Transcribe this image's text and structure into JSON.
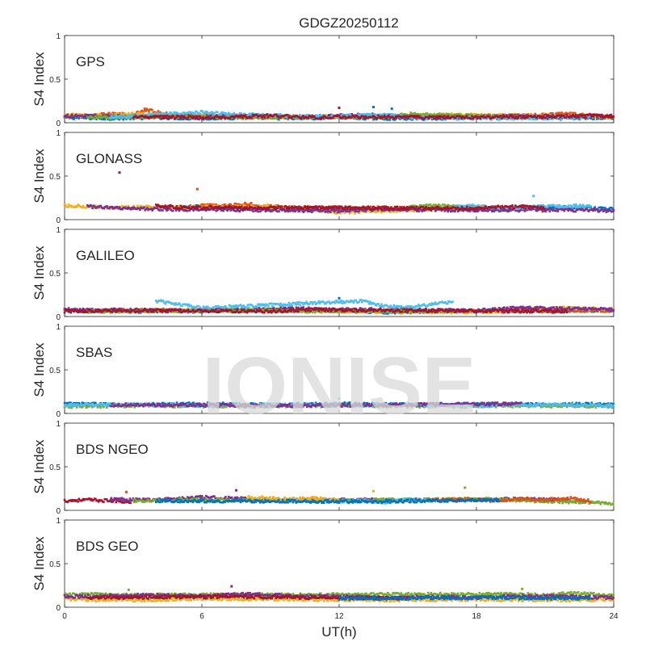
{
  "figure": {
    "title": "GDGZ20250112",
    "xlabel": "UT(h)",
    "watermark": "IONISE"
  },
  "chart_data": {
    "type": "scatter",
    "xlim": [
      0,
      24
    ],
    "xticks": [
      0,
      6,
      12,
      18,
      24
    ],
    "ylim": [
      0,
      1
    ],
    "yticks": [
      0,
      0.5,
      1
    ],
    "ylabel": "S4 Index",
    "grid": false,
    "colors": [
      "#0072BD",
      "#D95319",
      "#EDB120",
      "#7E2F8E",
      "#77AC30",
      "#4DBEEE",
      "#A2142F"
    ],
    "panels": [
      {
        "label": "GPS",
        "series": [
          {
            "color_index": 0,
            "x": [
              0,
              2,
              4,
              6,
              8,
              10,
              12,
              14,
              16,
              18,
              20,
              22,
              24
            ],
            "y": [
              0.06,
              0.05,
              0.06,
              0.05,
              0.06,
              0.05,
              0.06,
              0.05,
              0.05,
              0.06,
              0.06,
              0.05,
              0.06
            ]
          },
          {
            "color_index": 1,
            "x": [
              0,
              1,
              2,
              3,
              3.5,
              5,
              8,
              12,
              20,
              22,
              24
            ],
            "y": [
              0.07,
              0.08,
              0.1,
              0.09,
              0.15,
              0.07,
              0.06,
              0.07,
              0.08,
              0.1,
              0.07
            ]
          },
          {
            "color_index": 2,
            "x": [
              0,
              1,
              3,
              10,
              14,
              17,
              21,
              24
            ],
            "y": [
              0.09,
              0.08,
              0.1,
              0.07,
              0.08,
              0.09,
              0.08,
              0.07
            ]
          },
          {
            "color_index": 3,
            "x": [
              0,
              4,
              8,
              10,
              13,
              16,
              19,
              22,
              24
            ],
            "y": [
              0.08,
              0.07,
              0.08,
              0.06,
              0.09,
              0.07,
              0.08,
              0.07,
              0.08
            ]
          },
          {
            "color_index": 4,
            "x": [
              1,
              5,
              9,
              14,
              15,
              20
            ],
            "y": [
              0.06,
              0.07,
              0.06,
              0.07,
              0.1,
              0.06
            ]
          },
          {
            "color_index": 5,
            "x": [
              2,
              6,
              7,
              11,
              14,
              15,
              18,
              23
            ],
            "y": [
              0.06,
              0.12,
              0.1,
              0.07,
              0.09,
              0.06,
              0.05,
              0.06
            ]
          },
          {
            "color_index": 6,
            "x": [
              3,
              6,
              9,
              11,
              12,
              17,
              21,
              24
            ],
            "y": [
              0.07,
              0.06,
              0.08,
              0.06,
              0.07,
              0.06,
              0.07,
              0.08
            ]
          }
        ],
        "points": [
          {
            "x": 3.5,
            "y": 0.16,
            "color_index": 1
          },
          {
            "x": 13.5,
            "y": 0.18,
            "color_index": 0
          },
          {
            "x": 14.3,
            "y": 0.16,
            "color_index": 0
          },
          {
            "x": 12,
            "y": 0.17,
            "color_index": 6
          }
        ]
      },
      {
        "label": "GLONASS",
        "series": [
          {
            "color_index": 0,
            "x": [
              5,
              6,
              12,
              20,
              22,
              24
            ],
            "y": [
              0.14,
              0.15,
              0.12,
              0.13,
              0.14,
              0.12
            ]
          },
          {
            "color_index": 1,
            "x": [
              6,
              7,
              8,
              9,
              10,
              17,
              18
            ],
            "y": [
              0.17,
              0.16,
              0.18,
              0.15,
              0.14,
              0.13,
              0.14
            ]
          },
          {
            "color_index": 2,
            "x": [
              0,
              1,
              2,
              9,
              10,
              11,
              12,
              19
            ],
            "y": [
              0.16,
              0.15,
              0.14,
              0.15,
              0.13,
              0.11,
              0.08,
              0.15
            ]
          },
          {
            "color_index": 3,
            "x": [
              1,
              3,
              4,
              12,
              13,
              14,
              15,
              23,
              24
            ],
            "y": [
              0.15,
              0.13,
              0.12,
              0.1,
              0.11,
              0.12,
              0.11,
              0.11,
              0.1
            ]
          },
          {
            "color_index": 4,
            "x": [
              15,
              16,
              17,
              18
            ],
            "y": [
              0.14,
              0.16,
              0.15,
              0.14
            ]
          },
          {
            "color_index": 5,
            "x": [
              17,
              18,
              19,
              22,
              23
            ],
            "y": [
              0.15,
              0.16,
              0.13,
              0.16,
              0.15
            ]
          },
          {
            "color_index": 6,
            "x": [
              4,
              5,
              18,
              20,
              21
            ],
            "y": [
              0.16,
              0.14,
              0.13,
              0.15,
              0.13
            ]
          }
        ],
        "points": [
          {
            "x": 2.4,
            "y": 0.54,
            "color_index": 6
          },
          {
            "x": 5.8,
            "y": 0.35,
            "color_index": 1
          },
          {
            "x": 20.5,
            "y": 0.27,
            "color_index": 5
          }
        ]
      },
      {
        "label": "GALILEO",
        "series": [
          {
            "color_index": 0,
            "x": [
              0,
              3,
              6,
              10,
              12,
              14,
              16,
              19,
              24
            ],
            "y": [
              0.07,
              0.06,
              0.06,
              0.08,
              0.07,
              0.05,
              0.06,
              0.07,
              0.07
            ]
          },
          {
            "color_index": 1,
            "x": [
              0,
              8,
              16,
              20,
              24
            ],
            "y": [
              0.07,
              0.07,
              0.06,
              0.06,
              0.07
            ]
          },
          {
            "color_index": 2,
            "x": [
              2,
              6,
              18,
              22,
              24
            ],
            "y": [
              0.06,
              0.07,
              0.05,
              0.1,
              0.08
            ]
          },
          {
            "color_index": 3,
            "x": [
              0,
              5,
              10,
              14,
              18,
              20,
              24
            ],
            "y": [
              0.08,
              0.07,
              0.09,
              0.08,
              0.07,
              0.1,
              0.08
            ]
          },
          {
            "color_index": 4,
            "x": [
              1,
              7,
              12,
              17
            ],
            "y": [
              0.06,
              0.07,
              0.06,
              0.06
            ]
          },
          {
            "color_index": 5,
            "x": [
              4,
              5,
              6,
              8,
              13,
              14,
              15,
              16,
              17
            ],
            "y": [
              0.18,
              0.14,
              0.1,
              0.12,
              0.18,
              0.12,
              0.1,
              0.14,
              0.17
            ]
          },
          {
            "color_index": 6,
            "x": [
              0,
              3,
              9,
              11,
              13,
              22
            ],
            "y": [
              0.06,
              0.07,
              0.06,
              0.08,
              0.07,
              0.06
            ]
          }
        ],
        "points": [
          {
            "x": 12,
            "y": 0.21,
            "color_index": 0
          }
        ]
      },
      {
        "label": "SBAS",
        "series": [
          {
            "color_index": 0,
            "x": [
              0,
              3,
              6,
              9,
              12,
              15,
              18,
              21,
              24
            ],
            "y": [
              0.11,
              0.1,
              0.11,
              0.1,
              0.11,
              0.1,
              0.11,
              0.1,
              0.11
            ]
          },
          {
            "color_index": 4,
            "x": [
              0,
              4,
              8,
              12,
              16,
              20,
              24
            ],
            "y": [
              0.08,
              0.09,
              0.08,
              0.09,
              0.08,
              0.09,
              0.08
            ]
          },
          {
            "color_index": 5,
            "x": [
              0,
              3,
              6,
              9,
              12,
              15,
              18,
              21,
              24
            ],
            "y": [
              0.09,
              0.1,
              0.09,
              0.1,
              0.09,
              0.1,
              0.09,
              0.1,
              0.09
            ]
          },
          {
            "color_index": 3,
            "x": [
              2,
              10,
              20
            ],
            "y": [
              0.1,
              0.09,
              0.11
            ]
          }
        ],
        "points": [
          {
            "x": 12,
            "y": 0.17,
            "color_index": 5
          }
        ]
      },
      {
        "label": "BDS NGEO",
        "series": [
          {
            "color_index": 6,
            "x": [
              0,
              1,
              2,
              3
            ],
            "y": [
              0.11,
              0.12,
              0.11,
              0.1
            ]
          },
          {
            "color_index": 3,
            "x": [
              2,
              4,
              6,
              8,
              9,
              17,
              20,
              22
            ],
            "y": [
              0.13,
              0.12,
              0.15,
              0.13,
              0.12,
              0.12,
              0.13,
              0.12
            ]
          },
          {
            "color_index": 4,
            "x": [
              3,
              5,
              11,
              18,
              23,
              24
            ],
            "y": [
              0.11,
              0.12,
              0.11,
              0.13,
              0.09,
              0.08
            ]
          },
          {
            "color_index": 2,
            "x": [
              8,
              9,
              10,
              11,
              12
            ],
            "y": [
              0.15,
              0.14,
              0.13,
              0.14,
              0.11
            ]
          },
          {
            "color_index": 5,
            "x": [
              12,
              13,
              14,
              15,
              16
            ],
            "y": [
              0.1,
              0.11,
              0.09,
              0.12,
              0.11
            ]
          },
          {
            "color_index": 1,
            "x": [
              16,
              17,
              18,
              19,
              20,
              21,
              22,
              23
            ],
            "y": [
              0.12,
              0.13,
              0.12,
              0.11,
              0.13,
              0.12,
              0.14,
              0.11
            ]
          },
          {
            "color_index": 0,
            "x": [
              4,
              13,
              19
            ],
            "y": [
              0.11,
              0.1,
              0.12
            ]
          }
        ],
        "points": [
          {
            "x": 7.5,
            "y": 0.23,
            "color_index": 3
          },
          {
            "x": 17.5,
            "y": 0.26,
            "color_index": 4
          },
          {
            "x": 13.5,
            "y": 0.22,
            "color_index": 2
          },
          {
            "x": 2.7,
            "y": 0.21,
            "color_index": 1
          }
        ]
      },
      {
        "label": "BDS GEO",
        "series": [
          {
            "color_index": 4,
            "x": [
              0,
              1,
              2,
              20,
              21,
              22,
              23,
              24
            ],
            "y": [
              0.14,
              0.15,
              0.14,
              0.15,
              0.14,
              0.16,
              0.15,
              0.13
            ]
          },
          {
            "color_index": 2,
            "x": [
              0,
              3,
              6,
              10,
              14,
              18,
              22,
              24
            ],
            "y": [
              0.09,
              0.08,
              0.1,
              0.09,
              0.08,
              0.09,
              0.08,
              0.09
            ]
          },
          {
            "color_index": 3,
            "x": [
              0,
              2,
              4,
              6,
              8,
              10,
              12,
              14,
              16,
              18,
              20,
              22,
              24
            ],
            "y": [
              0.12,
              0.13,
              0.14,
              0.13,
              0.15,
              0.13,
              0.12,
              0.11,
              0.12,
              0.11,
              0.13,
              0.12,
              0.11
            ]
          },
          {
            "color_index": 6,
            "x": [
              1,
              7,
              15
            ],
            "y": [
              0.11,
              0.12,
              0.1
            ]
          },
          {
            "color_index": 0,
            "x": [
              12,
              19,
              23
            ],
            "y": [
              0.1,
              0.11,
              0.1
            ]
          }
        ],
        "points": [
          {
            "x": 7.3,
            "y": 0.24,
            "color_index": 3
          },
          {
            "x": 20,
            "y": 0.21,
            "color_index": 4
          },
          {
            "x": 2.8,
            "y": 0.2,
            "color_index": 4
          }
        ]
      }
    ]
  }
}
